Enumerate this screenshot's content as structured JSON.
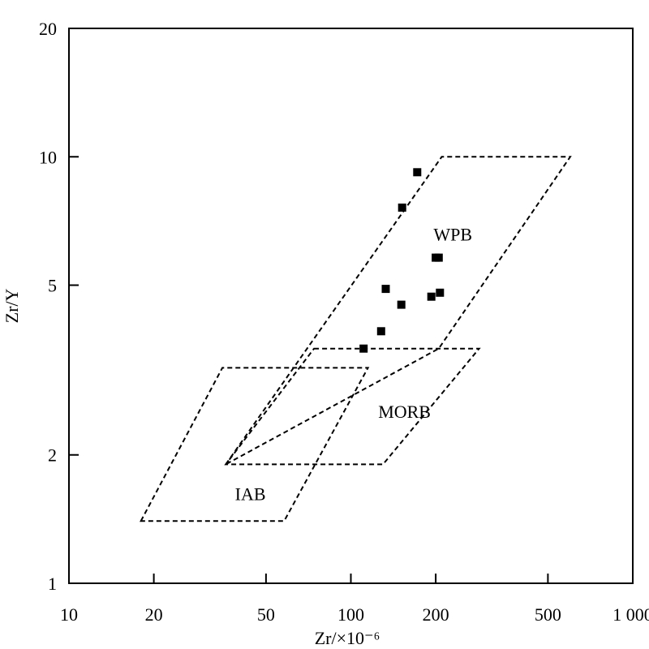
{
  "chart_data": {
    "type": "scatter",
    "title": "",
    "xlabel": "Zr/×10⁻⁶",
    "ylabel": "Zr/Y",
    "xscale": "log",
    "yscale": "log",
    "xlim": [
      10,
      1000
    ],
    "ylim": [
      1,
      20
    ],
    "xticks": [
      10,
      20,
      50,
      100,
      200,
      500,
      1000
    ],
    "xtick_labels": [
      "10",
      "20",
      "50",
      "100",
      "200",
      "500",
      "1 000"
    ],
    "yticks": [
      1,
      2,
      5,
      10,
      20
    ],
    "ytick_labels": [
      "1",
      "2",
      "5",
      "10",
      "20"
    ],
    "grid": false,
    "marker": "square",
    "marker_color": "#000000",
    "points": [
      {
        "x": 172,
        "y": 9.2
      },
      {
        "x": 152,
        "y": 7.6
      },
      {
        "x": 200,
        "y": 5.8
      },
      {
        "x": 205,
        "y": 5.8
      },
      {
        "x": 133,
        "y": 4.9
      },
      {
        "x": 151,
        "y": 4.5
      },
      {
        "x": 193,
        "y": 4.7
      },
      {
        "x": 207,
        "y": 4.8
      },
      {
        "x": 128,
        "y": 3.9
      },
      {
        "x": 111,
        "y": 3.55
      }
    ],
    "regions": [
      {
        "label": "WPB",
        "label_pos": {
          "x": 230,
          "y": 6.5
        },
        "vertices": [
          [
            36,
            1.9
          ],
          [
            210,
            10
          ],
          [
            600,
            10
          ],
          [
            205,
            3.55
          ]
        ]
      },
      {
        "label": "MORB",
        "label_pos": {
          "x": 155,
          "y": 2.5
        },
        "vertices": [
          [
            74,
            3.55
          ],
          [
            285,
            3.55
          ],
          [
            130,
            1.9
          ],
          [
            36,
            1.9
          ]
        ]
      },
      {
        "label": "IAB",
        "label_pos": {
          "x": 44,
          "y": 1.6
        },
        "vertices": [
          [
            18,
            1.4
          ],
          [
            35,
            3.2
          ],
          [
            115,
            3.2
          ],
          [
            58,
            1.4
          ]
        ]
      }
    ]
  }
}
